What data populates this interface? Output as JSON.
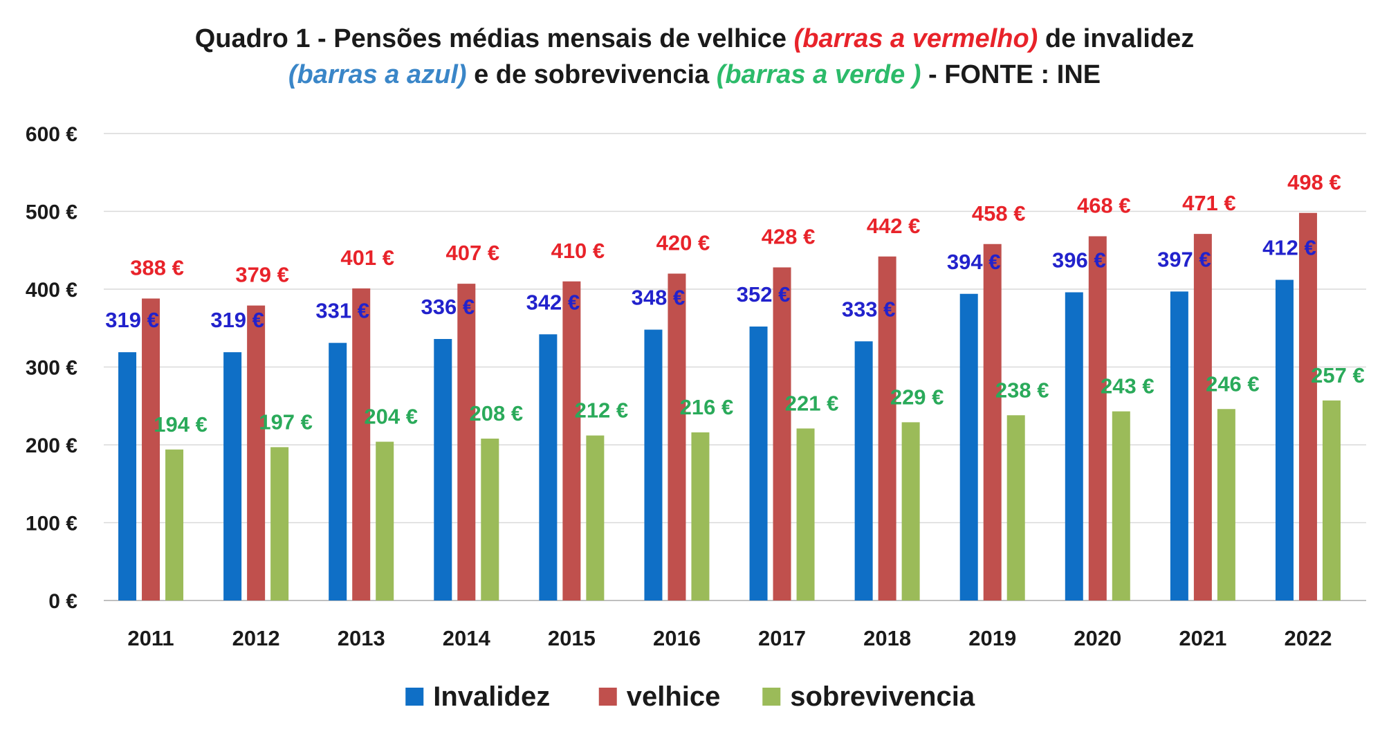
{
  "title": {
    "line1_part1": "Quadro 1 -  Pensões médias mensais de velhice ",
    "line1_part2": "(barras a vermelho)",
    "line1_part3": "  de invalidez",
    "line2_part1": "(barras a azul)",
    "line2_part2": " e de sobrevivencia ",
    "line2_part3": "(barras a verde )",
    "line2_part4": " - FONTE : INE"
  },
  "colors": {
    "title_black": "#1a1a1a",
    "title_red": "#e8232a",
    "title_blue": "#3a86c8",
    "title_green": "#2cbb6a",
    "invalidez": "#0f6fc6",
    "velhice": "#c0504d",
    "sobrevivencia": "#9bbb59",
    "label_invalidez": "#2222cc",
    "label_velhice": "#e8232a",
    "label_sobrevivencia": "#2aaa5a",
    "grid": "#d9d9d9",
    "axis": "#bfbfbf"
  },
  "chart_data": {
    "type": "bar",
    "categories": [
      "2011",
      "2012",
      "2013",
      "2014",
      "2015",
      "2016",
      "2017",
      "2018",
      "2019",
      "2020",
      "2021",
      "2022"
    ],
    "series": [
      {
        "name": "Invalidez",
        "values": [
          319,
          319,
          331,
          336,
          342,
          348,
          352,
          333,
          394,
          396,
          397,
          412
        ]
      },
      {
        "name": "velhice",
        "values": [
          388,
          379,
          401,
          407,
          410,
          420,
          428,
          442,
          458,
          468,
          471,
          498
        ]
      },
      {
        "name": "sobrevivencia",
        "values": [
          194,
          197,
          204,
          208,
          212,
          216,
          221,
          229,
          238,
          243,
          246,
          257
        ]
      }
    ],
    "value_suffix": " €",
    "yticks": [
      "0 €",
      "100 €",
      "200 €",
      "300 €",
      "400 €",
      "500 €",
      "600 €"
    ],
    "ylim": [
      0,
      600
    ],
    "grid": true,
    "legend_position": "bottom",
    "legend": [
      "Invalidez",
      "velhice",
      "sobrevivencia"
    ]
  }
}
